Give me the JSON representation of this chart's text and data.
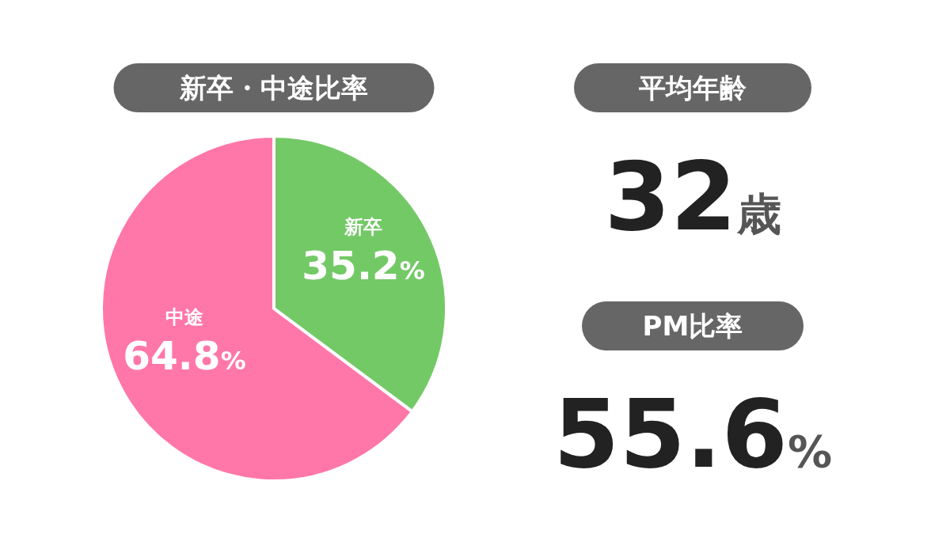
{
  "chart_data": [
    {
      "type": "pie",
      "title": "新卒・中途比率",
      "categories": [
        "新卒",
        "中途"
      ],
      "values": [
        35.2,
        64.8
      ],
      "colors": [
        "#73c966",
        "#ff77a8"
      ],
      "value_labels": [
        "35.2%",
        "64.8%"
      ]
    },
    {
      "type": "other",
      "title": "平均年齢",
      "annotations": [
        "32歳"
      ]
    },
    {
      "type": "other",
      "title": "PM比率",
      "annotations": [
        "55.6%"
      ]
    }
  ]
}
